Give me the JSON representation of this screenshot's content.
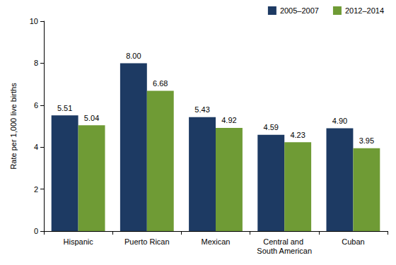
{
  "chart_data": {
    "type": "bar",
    "y_label": "Rate per 1,000 live births",
    "categories": [
      "Hispanic",
      "Puerto Rican",
      "Mexican",
      "Central and South American",
      "Cuban"
    ],
    "series": [
      {
        "name": "2005–2007",
        "color": "#1d3a63",
        "values": [
          5.51,
          8.0,
          5.43,
          4.59,
          4.9
        ],
        "value_labels": [
          "5.51",
          "8.00",
          "5.43",
          "4.59",
          "4.90"
        ]
      },
      {
        "name": "2012–2014",
        "color": "#6f9b35",
        "values": [
          5.04,
          6.68,
          4.92,
          4.23,
          3.95
        ],
        "value_labels": [
          "5.04",
          "6.68",
          "4.92",
          "4.23",
          "3.95"
        ]
      }
    ],
    "ylim": [
      0,
      10
    ],
    "yticks": [
      0,
      2,
      4,
      6,
      8,
      10
    ],
    "grid": false,
    "legend": "top-right",
    "data_labels": true
  }
}
